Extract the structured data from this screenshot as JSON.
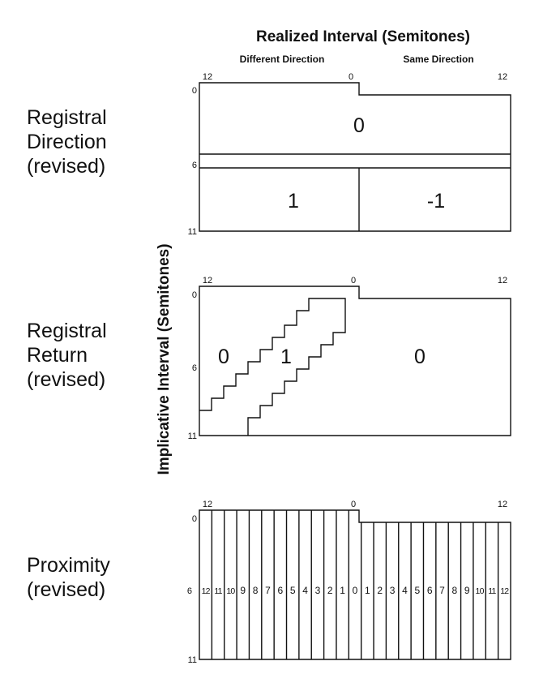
{
  "header": {
    "title": "Realized Interval (Semitones)",
    "left_label": "Different Direction",
    "right_label": "Same Direction"
  },
  "y_axis_label": "Implicative Interval (Semitones)",
  "panels": [
    {
      "label_lines": [
        "Registral",
        "Direction",
        "(revised)"
      ],
      "top_ticks": [
        "12",
        "0",
        "12"
      ],
      "side_ticks": [
        "0",
        "6",
        "11"
      ],
      "regions": [
        "0",
        "1",
        "-1"
      ]
    },
    {
      "label_lines": [
        "Registral",
        "Return",
        "(revised)"
      ],
      "top_ticks": [
        "12",
        "0",
        "12"
      ],
      "side_ticks": [
        "0",
        "6",
        "11"
      ],
      "regions": [
        "0",
        "1",
        "0"
      ]
    },
    {
      "label_lines": [
        "Proximity",
        "(revised)"
      ],
      "top_ticks": [
        "12",
        "0",
        "12"
      ],
      "side_ticks": [
        "0",
        "6",
        "11"
      ],
      "cells": [
        "12",
        "11",
        "10",
        "9",
        "8",
        "7",
        "6",
        "5",
        "4",
        "3",
        "2",
        "1",
        "0",
        "1",
        "2",
        "3",
        "4",
        "5",
        "6",
        "7",
        "8",
        "9",
        "10",
        "11",
        "12"
      ]
    }
  ]
}
